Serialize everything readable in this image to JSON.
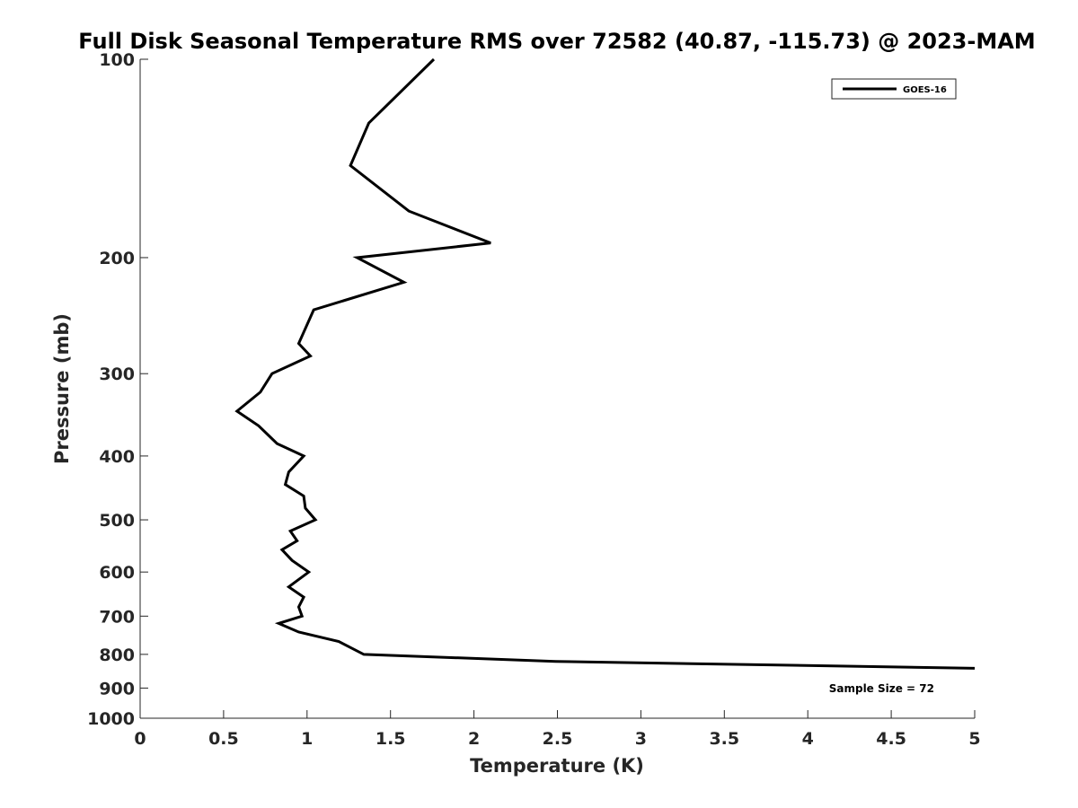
{
  "chart_data": {
    "type": "line",
    "title": "Full Disk Seasonal Temperature RMS over 72582 (40.87, -115.73) @ 2023-MAM",
    "xlabel": "Temperature (K)",
    "ylabel": "Pressure (mb)",
    "xlim": [
      0,
      5
    ],
    "ylim": [
      100,
      1000
    ],
    "y_scale": "log",
    "y_reversed": true,
    "x_ticks": [
      0,
      0.5,
      1,
      1.5,
      2,
      2.5,
      3,
      3.5,
      4,
      4.5,
      5
    ],
    "x_tick_labels": [
      "0",
      "0.5",
      "1",
      "1.5",
      "2",
      "2.5",
      "3",
      "3.5",
      "4",
      "4.5",
      "5"
    ],
    "y_ticks": [
      100,
      200,
      300,
      400,
      500,
      600,
      700,
      800,
      900,
      1000
    ],
    "y_tick_labels": [
      "100",
      "200",
      "300",
      "400",
      "500",
      "600",
      "700",
      "800",
      "900",
      "1000"
    ],
    "grid": false,
    "legend_position": "top-right",
    "annotation": "Sample Size = 72",
    "series": [
      {
        "name": "GOES-16",
        "color": "#000000",
        "x": [
          1.76,
          1.37,
          1.26,
          1.61,
          2.1,
          1.3,
          1.58,
          1.04,
          0.95,
          1.02,
          0.79,
          0.72,
          0.58,
          0.71,
          0.82,
          0.98,
          0.89,
          0.87,
          0.98,
          0.99,
          1.05,
          0.9,
          0.94,
          0.85,
          0.91,
          1.01,
          0.89,
          0.98,
          0.95,
          0.97,
          0.83,
          0.95,
          1.19,
          1.34,
          2.49,
          5.0
        ],
        "y": [
          100,
          125,
          145,
          170,
          190,
          200,
          218,
          240,
          270,
          282,
          300,
          320,
          342,
          360,
          383,
          400,
          423,
          442,
          460,
          480,
          500,
          520,
          538,
          555,
          576,
          600,
          632,
          655,
          678,
          700,
          718,
          740,
          765,
          800,
          820,
          840
        ]
      }
    ]
  }
}
